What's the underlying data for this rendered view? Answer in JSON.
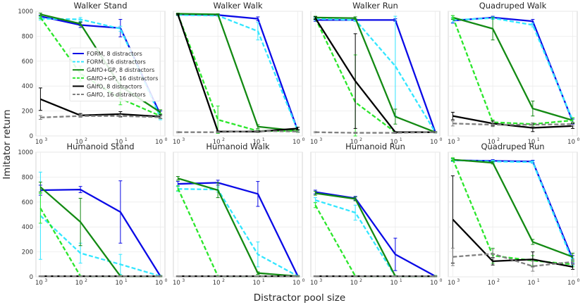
{
  "chart_data": {
    "type": "line",
    "layout": "2x4 grid of subplots",
    "xlabel": "Distractor pool size",
    "ylabel": "Imitator return",
    "x": [
      1000,
      100,
      10,
      1
    ],
    "x_ticks": [
      {
        "base": "10",
        "exp": "3"
      },
      {
        "base": "10",
        "exp": "2"
      },
      {
        "base": "10",
        "exp": "1"
      },
      {
        "base": "10",
        "exp": "0"
      }
    ],
    "ylim": [
      0,
      1000
    ],
    "y_ticks": [
      "0",
      "200",
      "400",
      "600",
      "800",
      "1000"
    ],
    "grid": true,
    "legend_location": "inside first panel, center",
    "series_styles": [
      {
        "name": "FORM, 8 distractors",
        "color": "#0a0ae6",
        "dash": "solid"
      },
      {
        "name": "FORM, 16 distractors",
        "color": "#33e6ff",
        "dash": "dashed"
      },
      {
        "name": "GAIfO+GP, 8 distractors",
        "color": "#138a13",
        "dash": "solid"
      },
      {
        "name": "GAIfO+GP, 16 distractors",
        "color": "#2be62b",
        "dash": "dashed"
      },
      {
        "name": "GAIfO, 8 distractors",
        "color": "#000000",
        "dash": "solid"
      },
      {
        "name": "GAIfO, 16 distractors",
        "color": "#808080",
        "dash": "dashed"
      }
    ],
    "panels": [
      {
        "title": "Walker Stand",
        "series": [
          {
            "name": "FORM, 8 distractors",
            "values": [
              960,
              890,
              865,
              170
            ],
            "err": [
              10,
              20,
              70,
              30
            ]
          },
          {
            "name": "FORM, 16 distractors",
            "values": [
              940,
              935,
              860,
              150
            ],
            "err": [
              10,
              15,
              20,
              20
            ]
          },
          {
            "name": "GAIfO+GP, 8 distractors",
            "values": [
              975,
              900,
              400,
              190
            ],
            "err": [
              10,
              15,
              60,
              20
            ]
          },
          {
            "name": "GAIfO+GP, 16 distractors",
            "values": [
              950,
              500,
              300,
              160
            ],
            "err": [
              10,
              60,
              50,
              20
            ]
          },
          {
            "name": "GAIfO, 8 distractors",
            "values": [
              295,
              165,
              175,
              155
            ],
            "err": [
              90,
              15,
              20,
              15
            ]
          },
          {
            "name": "GAIfO, 16 distractors",
            "values": [
              148,
              160,
              160,
              150
            ],
            "err": [
              15,
              10,
              10,
              10
            ]
          }
        ]
      },
      {
        "title": "Walker Walk",
        "series": [
          {
            "name": "FORM, 8 distractors",
            "values": [
              975,
              970,
              940,
              40
            ],
            "err": [
              5,
              5,
              15,
              10
            ]
          },
          {
            "name": "FORM, 16 distractors",
            "values": [
              970,
              965,
              840,
              40
            ],
            "err": [
              5,
              5,
              70,
              10
            ]
          },
          {
            "name": "GAIfO+GP, 8 distractors",
            "values": [
              980,
              975,
              75,
              40
            ],
            "err": [
              5,
              5,
              15,
              10
            ]
          },
          {
            "name": "GAIfO+GP, 16 distractors",
            "values": [
              975,
              130,
              40,
              40
            ],
            "err": [
              5,
              110,
              10,
              10
            ]
          },
          {
            "name": "GAIfO, 8 distractors",
            "values": [
              975,
              35,
              35,
              60
            ],
            "err": [
              5,
              5,
              5,
              10
            ]
          },
          {
            "name": "GAIfO, 16 distractors",
            "values": [
              30,
              30,
              40,
              35
            ],
            "err": [
              5,
              5,
              5,
              5
            ]
          }
        ]
      },
      {
        "title": "Walker Run",
        "series": [
          {
            "name": "FORM, 8 distractors",
            "values": [
              930,
              930,
              930,
              30
            ],
            "err": [
              10,
              10,
              10,
              5
            ]
          },
          {
            "name": "FORM, 16 distractors",
            "values": [
              940,
              930,
              560,
              30
            ],
            "err": [
              10,
              10,
              400,
              5
            ]
          },
          {
            "name": "GAIfO+GP, 8 distractors",
            "values": [
              950,
              945,
              155,
              30
            ],
            "err": [
              10,
              10,
              60,
              5
            ]
          },
          {
            "name": "GAIfO+GP, 16 distractors",
            "values": [
              945,
              270,
              30,
              30
            ],
            "err": [
              10,
              380,
              5,
              5
            ]
          },
          {
            "name": "GAIfO, 8 distractors",
            "values": [
              945,
              440,
              30,
              30
            ],
            "err": [
              10,
              380,
              5,
              5
            ]
          },
          {
            "name": "GAIfO, 16 distractors",
            "values": [
              30,
              25,
              25,
              30
            ],
            "err": [
              5,
              5,
              5,
              5
            ]
          }
        ]
      },
      {
        "title": "Quadruped Walk",
        "series": [
          {
            "name": "FORM, 8 distractors",
            "values": [
              925,
              950,
              920,
              115
            ],
            "err": [
              20,
              10,
              15,
              20
            ]
          },
          {
            "name": "FORM, 16 distractors",
            "values": [
              930,
              945,
              890,
              125
            ],
            "err": [
              20,
              10,
              15,
              20
            ]
          },
          {
            "name": "GAIfO+GP, 8 distractors",
            "values": [
              950,
              860,
              220,
              125
            ],
            "err": [
              15,
              90,
              60,
              20
            ]
          },
          {
            "name": "GAIfO+GP, 16 distractors",
            "values": [
              955,
              110,
              95,
              125
            ],
            "err": [
              10,
              20,
              10,
              20
            ]
          },
          {
            "name": "GAIfO, 8 distractors",
            "values": [
              160,
              100,
              65,
              80
            ],
            "err": [
              30,
              20,
              30,
              20
            ]
          },
          {
            "name": "GAIfO, 16 distractors",
            "values": [
              100,
              90,
              90,
              95
            ],
            "err": [
              20,
              15,
              15,
              15
            ]
          }
        ]
      },
      {
        "title": "Humanoid Stand",
        "series": [
          {
            "name": "FORM, 8 distractors",
            "values": [
              695,
              700,
              520,
              5
            ],
            "err": [
              40,
              25,
              250,
              5
            ]
          },
          {
            "name": "FORM, 16 distractors",
            "values": [
              490,
              190,
              100,
              5
            ],
            "err": [
              350,
              80,
              80,
              5
            ]
          },
          {
            "name": "GAIfO+GP, 8 distractors",
            "values": [
              720,
              440,
              5,
              5
            ],
            "err": [
              40,
              190,
              5,
              5
            ]
          },
          {
            "name": "GAIfO+GP, 16 distractors",
            "values": [
              550,
              5,
              5,
              5
            ],
            "err": [
              120,
              5,
              5,
              5
            ]
          },
          {
            "name": "GAIfO, 8 distractors",
            "values": [
              5,
              5,
              5,
              5
            ],
            "err": [
              3,
              3,
              3,
              3
            ]
          },
          {
            "name": "GAIfO, 16 distractors",
            "values": [
              5,
              5,
              5,
              5
            ],
            "err": [
              3,
              3,
              3,
              3
            ]
          }
        ]
      },
      {
        "title": "Humanoid Walk",
        "series": [
          {
            "name": "FORM, 8 distractors",
            "values": [
              745,
              755,
              665,
              5
            ],
            "err": [
              20,
              20,
              100,
              5
            ]
          },
          {
            "name": "FORM, 16 distractors",
            "values": [
              705,
              700,
              180,
              5
            ],
            "err": [
              20,
              20,
              100,
              5
            ]
          },
          {
            "name": "GAIfO+GP, 8 distractors",
            "values": [
              790,
              695,
              30,
              5
            ],
            "err": [
              15,
              60,
              10,
              5
            ]
          },
          {
            "name": "GAIfO+GP, 16 distractors",
            "values": [
              710,
              5,
              5,
              5
            ],
            "err": [
              20,
              5,
              5,
              5
            ]
          },
          {
            "name": "GAIfO, 8 distractors",
            "values": [
              5,
              5,
              5,
              5
            ],
            "err": [
              3,
              3,
              3,
              3
            ]
          },
          {
            "name": "GAIfO, 16 distractors",
            "values": [
              5,
              5,
              5,
              5
            ],
            "err": [
              3,
              3,
              3,
              3
            ]
          }
        ]
      },
      {
        "title": "Humanoid Run",
        "series": [
          {
            "name": "FORM, 8 distractors",
            "values": [
              680,
              630,
              180,
              5
            ],
            "err": [
              15,
              15,
              130,
              5
            ]
          },
          {
            "name": "FORM, 16 distractors",
            "values": [
              615,
              515,
              5,
              5
            ],
            "err": [
              20,
              60,
              5,
              5
            ]
          },
          {
            "name": "GAIfO+GP, 8 distractors",
            "values": [
              670,
              625,
              5,
              5
            ],
            "err": [
              15,
              15,
              5,
              5
            ]
          },
          {
            "name": "GAIfO+GP, 16 distractors",
            "values": [
              575,
              5,
              5,
              5
            ],
            "err": [
              20,
              5,
              5,
              5
            ]
          },
          {
            "name": "GAIfO, 8 distractors",
            "values": [
              5,
              5,
              5,
              5
            ],
            "err": [
              3,
              3,
              3,
              3
            ]
          },
          {
            "name": "GAIfO, 16 distractors",
            "values": [
              5,
              5,
              5,
              5
            ],
            "err": [
              3,
              3,
              3,
              3
            ]
          }
        ]
      },
      {
        "title": "Quadruped Run",
        "series": [
          {
            "name": "FORM, 8 distractors",
            "values": [
              935,
              930,
              925,
              140
            ],
            "err": [
              10,
              10,
              10,
              30
            ]
          },
          {
            "name": "FORM, 16 distractors",
            "values": [
              935,
              925,
              920,
              120
            ],
            "err": [
              10,
              10,
              10,
              30
            ]
          },
          {
            "name": "GAIfO+GP, 8 distractors",
            "values": [
              940,
              915,
              280,
              160
            ],
            "err": [
              10,
              10,
              20,
              30
            ]
          },
          {
            "name": "GAIfO+GP, 16 distractors",
            "values": [
              945,
              170,
              130,
              100
            ],
            "err": [
              10,
              60,
              40,
              20
            ]
          },
          {
            "name": "GAIfO, 8 distractors",
            "values": [
              460,
              125,
              140,
              80
            ],
            "err": [
              350,
              30,
              60,
              20
            ]
          },
          {
            "name": "GAIfO, 16 distractors",
            "values": [
              160,
              185,
              85,
              120
            ],
            "err": [
              70,
              40,
              40,
              20
            ]
          }
        ]
      }
    ]
  }
}
